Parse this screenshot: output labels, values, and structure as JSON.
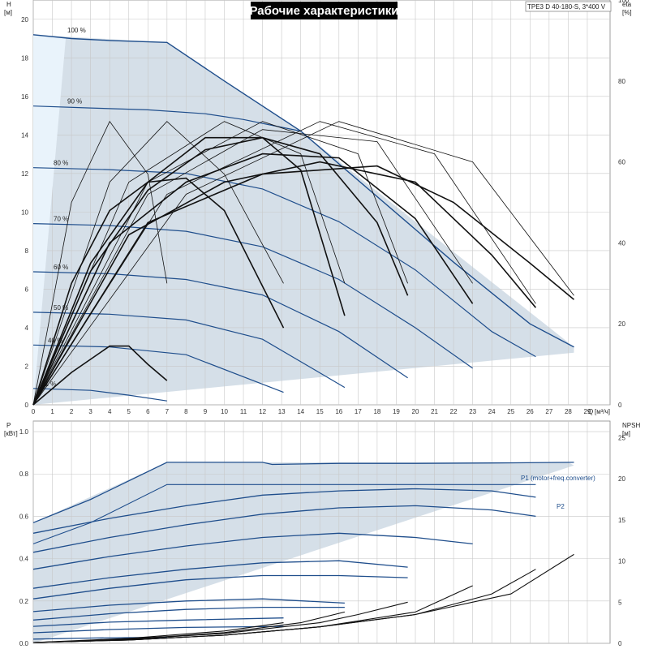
{
  "title": "Рабочие характеристики",
  "model": "TPE3 D 40-180-S, 3*400 V",
  "colors": {
    "envelope": "#d0dbe6",
    "curve": "#1f4e8c",
    "eff": "#111111",
    "grid": "#c8c8c8"
  },
  "chart_data": [
    {
      "type": "line",
      "id": "head",
      "ylabel": "H",
      "yunit": "[м]",
      "y2label": "eta",
      "y2unit": "[%]",
      "xlabel": "Q",
      "xunit": "[м³/ч]",
      "xlim": [
        0,
        30
      ],
      "ylim": [
        0,
        21
      ],
      "y2lim": [
        0,
        100
      ],
      "xticks": [
        "0",
        "1",
        "2",
        "3",
        "4",
        "5",
        "6",
        "7",
        "8",
        "9",
        "10",
        "11",
        "12",
        "13",
        "14",
        "15",
        "16",
        "17",
        "18",
        "19",
        "20",
        "21",
        "22",
        "23",
        "24",
        "25",
        "26",
        "27",
        "28",
        "29"
      ],
      "yticks": [
        "0",
        "2",
        "4",
        "6",
        "8",
        "10",
        "12",
        "14",
        "16",
        "18",
        "20"
      ],
      "y2ticks": [
        "0",
        "20",
        "40",
        "60",
        "80",
        "100"
      ],
      "grid": true,
      "envelope": {
        "x": [
          0,
          7,
          14,
          28.3,
          28.3,
          0
        ],
        "y": [
          19.2,
          18.8,
          14.2,
          3.0,
          2.7,
          0
        ]
      },
      "series": [
        {
          "name": "100 %",
          "x": [
            0,
            2,
            4,
            7,
            10,
            14,
            18,
            22,
            26,
            28.3
          ],
          "y": [
            19.2,
            19.0,
            18.9,
            18.8,
            16.8,
            14.2,
            10.8,
            7.4,
            4.2,
            3.0
          ]
        },
        {
          "name": "90 %",
          "x": [
            0,
            3,
            6,
            9,
            11,
            12.5,
            14
          ],
          "y": [
            15.5,
            15.4,
            15.3,
            15.1,
            14.8,
            14.5,
            14.2
          ]
        },
        {
          "name": "80 %",
          "x": [
            0,
            4,
            8,
            12,
            16,
            20,
            24,
            26.3
          ],
          "y": [
            12.3,
            12.2,
            12.0,
            11.2,
            9.5,
            7.0,
            3.8,
            2.5
          ]
        },
        {
          "name": "70 %",
          "x": [
            0,
            4,
            8,
            12,
            16,
            20,
            23
          ],
          "y": [
            9.4,
            9.3,
            9.0,
            8.2,
            6.5,
            4.0,
            1.9
          ]
        },
        {
          "name": "60 %",
          "x": [
            0,
            4,
            8,
            12,
            16,
            19.6
          ],
          "y": [
            6.9,
            6.8,
            6.5,
            5.7,
            3.8,
            1.4
          ]
        },
        {
          "name": "50 %",
          "x": [
            0,
            4,
            8,
            12,
            16.3
          ],
          "y": [
            4.8,
            4.7,
            4.4,
            3.4,
            0.9
          ]
        },
        {
          "name": "40 %",
          "x": [
            0,
            4,
            8,
            13.1
          ],
          "y": [
            3.1,
            3.0,
            2.6,
            0.65
          ]
        },
        {
          "name": "21 %",
          "x": [
            0,
            3,
            5,
            7
          ],
          "y": [
            0.85,
            0.75,
            0.5,
            0.2
          ]
        }
      ],
      "eta_series": [
        {
          "x": [
            0,
            2,
            4,
            5,
            6,
            7
          ],
          "y": [
            0,
            8,
            14.5,
            14.5,
            10,
            6
          ]
        },
        {
          "x": [
            0,
            2,
            4,
            6,
            8,
            10,
            13.1
          ],
          "y": [
            0,
            30,
            48,
            55,
            56,
            48,
            19
          ]
        },
        {
          "x": [
            0,
            3,
            6,
            9,
            12,
            14,
            16.3
          ],
          "y": [
            0,
            35,
            55,
            66,
            66,
            58,
            22
          ]
        },
        {
          "x": [
            0,
            3,
            6,
            9,
            12,
            15,
            18,
            19.6
          ],
          "y": [
            0,
            33,
            53,
            63,
            66,
            62,
            45,
            27
          ]
        },
        {
          "x": [
            0,
            4,
            8,
            12,
            16,
            20,
            23
          ],
          "y": [
            0,
            40,
            55,
            62,
            61,
            46,
            25
          ]
        },
        {
          "x": [
            0,
            5,
            10,
            15,
            20,
            24,
            26.3
          ],
          "y": [
            0,
            42,
            55,
            60,
            55,
            37,
            24
          ]
        },
        {
          "x": [
            0,
            6,
            12,
            18,
            22,
            26,
            28.3
          ],
          "y": [
            0,
            45,
            57,
            59,
            50,
            35,
            26
          ]
        },
        {
          "x": [
            0,
            2,
            4,
            6,
            7
          ],
          "y": [
            0,
            50,
            70,
            57,
            30
          ]
        },
        {
          "x": [
            0,
            4,
            7,
            10,
            13.1
          ],
          "y": [
            0,
            55,
            70,
            57,
            30
          ]
        },
        {
          "x": [
            0,
            5,
            10,
            14,
            16.3
          ],
          "y": [
            0,
            55,
            70,
            62,
            30
          ]
        },
        {
          "x": [
            0,
            6,
            12,
            17,
            19.6
          ],
          "y": [
            0,
            55,
            70,
            62,
            30
          ]
        },
        {
          "x": [
            0,
            6,
            12,
            18,
            23
          ],
          "y": [
            0,
            52,
            68,
            65,
            30
          ]
        },
        {
          "x": [
            0,
            7,
            15,
            21,
            26.3
          ],
          "y": [
            0,
            52,
            70,
            62,
            25
          ]
        },
        {
          "x": [
            0,
            8,
            16,
            23,
            28.3
          ],
          "y": [
            0,
            52,
            70,
            60,
            27
          ]
        }
      ]
    },
    {
      "type": "line",
      "id": "power",
      "ylabel": "P",
      "yunit": "[кВт]",
      "y2label": "NPSH",
      "y2unit": "[м]",
      "xlim": [
        0,
        30
      ],
      "ylim": [
        0,
        1.05
      ],
      "y2lim": [
        0,
        27
      ],
      "yticks": [
        "0.0",
        "0.2",
        "0.4",
        "0.6",
        "0.8",
        "1.0"
      ],
      "y2ticks": [
        "0",
        "5",
        "10",
        "15",
        "20",
        "25"
      ],
      "grid": true,
      "p1_label": "P1 (motor+freq.converter)",
      "p2_label": "P2",
      "envelope": {
        "x": [
          0,
          7,
          12,
          28,
          28.3,
          0
        ],
        "y": [
          0.57,
          0.855,
          0.855,
          0.855,
          0.84,
          0
        ]
      },
      "p1_curve": {
        "x": [
          0,
          3,
          7,
          12,
          12.5,
          16,
          20,
          24,
          28.3
        ],
        "y": [
          0.57,
          0.68,
          0.855,
          0.855,
          0.845,
          0.85,
          0.85,
          0.852,
          0.855
        ]
      },
      "p2_curve": {
        "x": [
          0,
          3,
          7,
          12,
          16,
          20,
          24,
          26.3
        ],
        "y": [
          0.47,
          0.57,
          0.75,
          0.75,
          0.75,
          0.75,
          0.75,
          0.75
        ]
      },
      "series": [
        {
          "x": [
            0,
            4,
            8,
            12,
            16,
            20,
            24,
            26.3
          ],
          "y": [
            0.52,
            0.59,
            0.65,
            0.7,
            0.72,
            0.73,
            0.72,
            0.69
          ]
        },
        {
          "x": [
            0,
            4,
            8,
            12,
            16,
            20,
            24,
            26.3
          ],
          "y": [
            0.43,
            0.5,
            0.56,
            0.61,
            0.64,
            0.65,
            0.63,
            0.6
          ]
        },
        {
          "x": [
            0,
            4,
            8,
            12,
            16,
            20,
            23
          ],
          "y": [
            0.35,
            0.41,
            0.46,
            0.5,
            0.52,
            0.5,
            0.47
          ]
        },
        {
          "x": [
            0,
            4,
            8,
            12,
            16,
            19.6
          ],
          "y": [
            0.26,
            0.31,
            0.35,
            0.38,
            0.39,
            0.36
          ]
        },
        {
          "x": [
            0,
            4,
            8,
            12,
            16,
            19.6
          ],
          "y": [
            0.21,
            0.26,
            0.3,
            0.32,
            0.32,
            0.31
          ]
        },
        {
          "x": [
            0,
            4,
            8,
            12,
            16.3
          ],
          "y": [
            0.15,
            0.18,
            0.2,
            0.21,
            0.19
          ]
        },
        {
          "x": [
            0,
            4,
            8,
            12,
            16.3
          ],
          "y": [
            0.11,
            0.14,
            0.16,
            0.17,
            0.17
          ]
        },
        {
          "x": [
            0,
            4,
            8,
            13.1
          ],
          "y": [
            0.08,
            0.1,
            0.11,
            0.12
          ]
        },
        {
          "x": [
            0,
            4,
            8,
            13.1
          ],
          "y": [
            0.05,
            0.065,
            0.075,
            0.08
          ]
        },
        {
          "x": [
            0,
            3,
            5,
            7
          ],
          "y": [
            0.02,
            0.025,
            0.027,
            0.028
          ]
        }
      ],
      "npsh_series": [
        {
          "x": [
            0,
            5,
            10,
            15,
            20,
            25,
            28.3
          ],
          "y": [
            0.1,
            0.4,
            1.0,
            2.0,
            3.5,
            6.0,
            10.8
          ]
        },
        {
          "x": [
            0,
            5,
            10,
            15,
            20,
            24,
            26.3
          ],
          "y": [
            0.1,
            0.4,
            1.0,
            2.0,
            3.5,
            6.0,
            9.0
          ]
        },
        {
          "x": [
            0,
            5,
            10,
            15,
            20,
            23
          ],
          "y": [
            0.1,
            0.4,
            1.0,
            2.0,
            3.8,
            7.0
          ]
        },
        {
          "x": [
            0,
            5,
            10,
            15,
            17,
            19.6
          ],
          "y": [
            0.1,
            0.5,
            1.2,
            2.5,
            3.5,
            5.0
          ]
        },
        {
          "x": [
            0,
            5,
            10,
            14,
            16.3
          ],
          "y": [
            0.1,
            0.5,
            1.3,
            2.5,
            3.8
          ]
        },
        {
          "x": [
            0,
            5,
            10,
            13.1
          ],
          "y": [
            0.1,
            0.6,
            1.5,
            2.5
          ]
        },
        {
          "x": [
            0,
            3,
            5,
            7
          ],
          "y": [
            0.1,
            0.3,
            0.6,
            0.8
          ]
        }
      ]
    }
  ]
}
